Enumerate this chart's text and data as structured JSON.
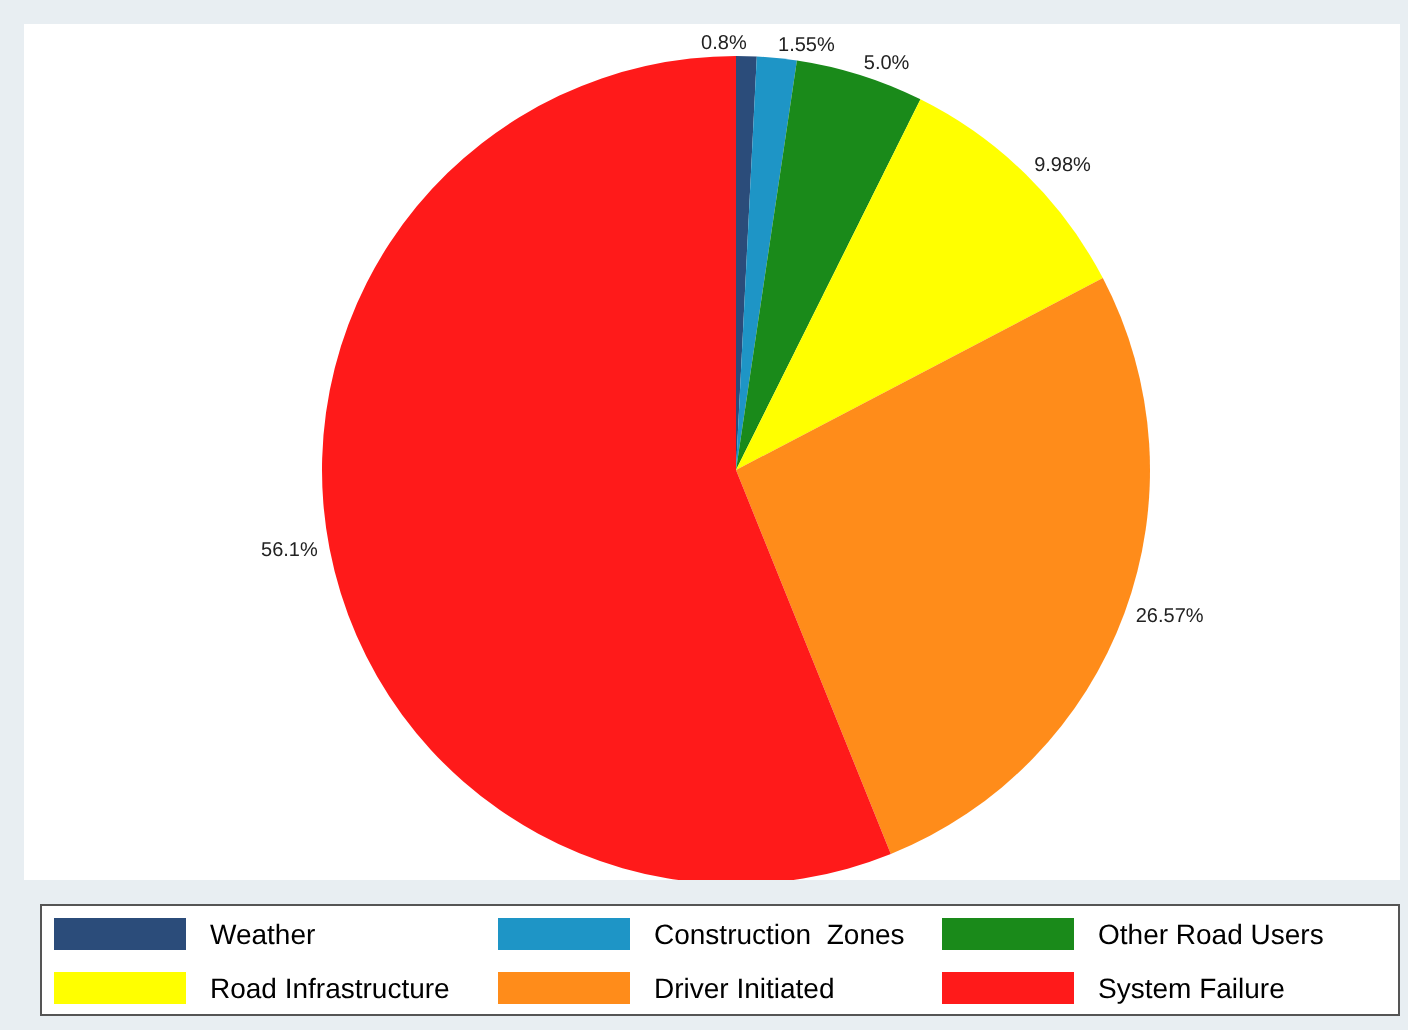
{
  "chart_data": {
    "type": "pie",
    "categories": [
      "Weather",
      "Construction  Zones",
      "Other Road Users",
      "Road Infrastructure",
      "Driver Initiated",
      "System Failure"
    ],
    "values": [
      0.8,
      1.55,
      5.0,
      9.98,
      26.57,
      56.1
    ],
    "value_labels": [
      "0.8%",
      "1.55%",
      "5.0%",
      "9.98%",
      "26.57%",
      "56.1%"
    ],
    "colors": [
      "#2b4c7a",
      "#1e95c6",
      "#1a8a1a",
      "#ffff00",
      "#ff8c1a",
      "#ff1a1a"
    ],
    "legend": "bottom"
  }
}
